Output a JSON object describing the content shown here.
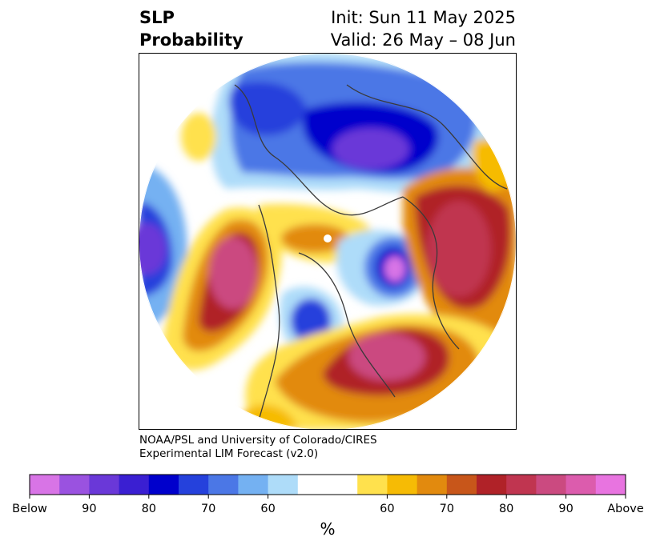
{
  "header": {
    "title_line1": "SLP",
    "title_line2": "Probability",
    "init_text": "Init: Sun 11 May 2025",
    "valid_text": "Valid: 26 May – 08 Jun"
  },
  "credit": {
    "line1": "NOAA/PSL and University of Colorado/CIRES",
    "line2": "Experimental LIM Forecast (v2.0)"
  },
  "chart_data": {
    "type": "heatmap",
    "variable": "SLP Probability",
    "projection": "north-polar-stereographic",
    "colorbar": {
      "unit": "%",
      "tick_labels": [
        "Below",
        "90",
        "80",
        "70",
        "60",
        "60",
        "70",
        "80",
        "90",
        "Above"
      ],
      "bins": [
        {
          "label": "Below 95-100",
          "color": "#d874e6"
        },
        {
          "label": "Below 90-95",
          "color": "#9a52e0"
        },
        {
          "label": "Below 85-90",
          "color": "#6a38d8"
        },
        {
          "label": "Below 80-85",
          "color": "#3a1fd2"
        },
        {
          "label": "Below 75-80",
          "color": "#0000cc"
        },
        {
          "label": "Below 70-75",
          "color": "#2541dc"
        },
        {
          "label": "Below 65-70",
          "color": "#4b77e6"
        },
        {
          "label": "Below 60-65",
          "color": "#74b1f2"
        },
        {
          "label": "Below 55-60",
          "color": "#aedcf9"
        },
        {
          "label": "Neutral",
          "color": "#ffffff"
        },
        {
          "label": "Above 55-60",
          "color": "#ffe14d"
        },
        {
          "label": "Above 60-65",
          "color": "#f6bb05"
        },
        {
          "label": "Above 65-70",
          "color": "#e28a0e"
        },
        {
          "label": "Above 70-75",
          "color": "#c8561a"
        },
        {
          "label": "Above 75-80",
          "color": "#b02228"
        },
        {
          "label": "Above 80-85",
          "color": "#c03550"
        },
        {
          "label": "Above 85-90",
          "color": "#cb4a80"
        },
        {
          "label": "Above 90-95",
          "color": "#dc5cad"
        },
        {
          "label": "Above 95-100",
          "color": "#e874e0"
        }
      ]
    }
  }
}
